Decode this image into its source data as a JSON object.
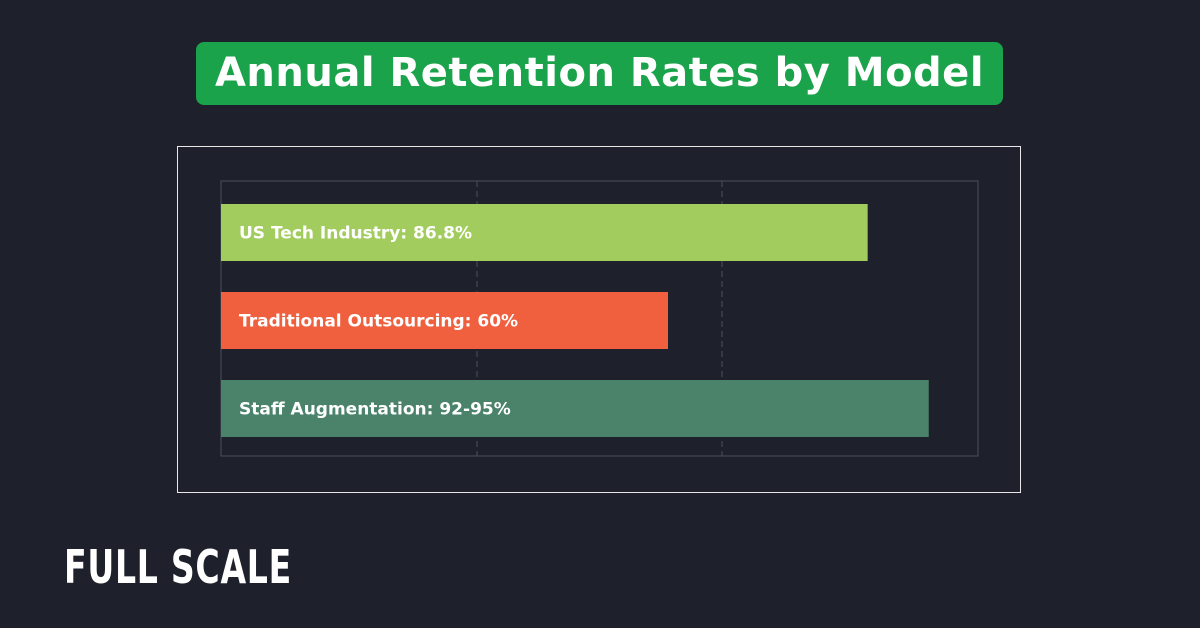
{
  "chart_data": {
    "type": "bar",
    "orientation": "horizontal",
    "title": "Annual Retention Rates by Model",
    "categories": [
      "US Tech Industry",
      "Traditional Outsourcing",
      "Staff Augmentation"
    ],
    "labels": [
      "US Tech Industry: 86.8%",
      "Traditional Outsourcing: 60%",
      "Staff Augmentation: 92-95%"
    ],
    "values": [
      86.8,
      60,
      95
    ],
    "value_ranges": [
      [
        86.8,
        86.8
      ],
      [
        60,
        60
      ],
      [
        92,
        95
      ]
    ],
    "colors": [
      "#a2cd5e",
      "#f0603f",
      "#4a826a"
    ],
    "xlabel": "",
    "ylabel": "",
    "grid": true,
    "legend": "none",
    "tick_labels_shown": false
  },
  "brand": {
    "logo_text": "FULL SCALE",
    "title_bg": "#1aa34a",
    "background": "#1e212b"
  }
}
